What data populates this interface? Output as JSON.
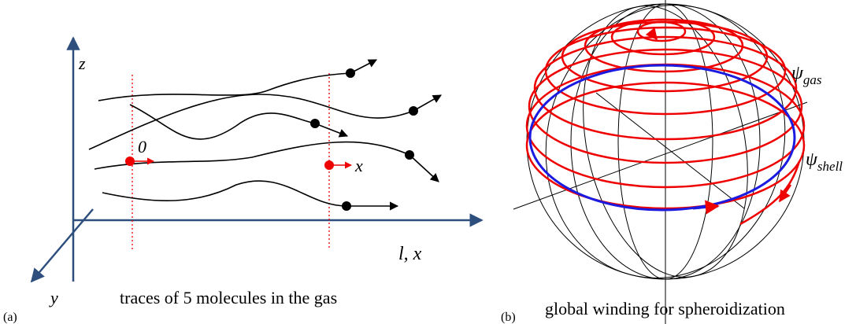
{
  "panels": [
    {
      "label": "(a)",
      "caption": "traces of 5 molecules in the gas",
      "axis_labels": {
        "z": "z",
        "y": "y",
        "x": "l, x"
      },
      "markers": {
        "start": "0",
        "end": "x"
      }
    },
    {
      "label": "(b)",
      "caption": "global winding for spheroidization",
      "annotations": [
        {
          "symbol": "ψ",
          "subscript": "gas"
        },
        {
          "symbol": "ψ",
          "subscript": "shell"
        }
      ]
    }
  ]
}
